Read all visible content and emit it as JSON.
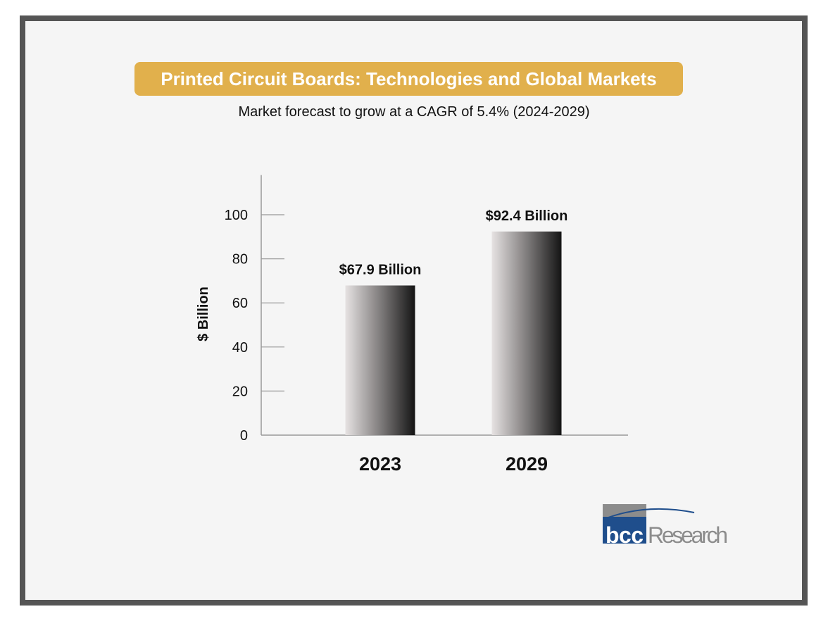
{
  "title": "Printed Circuit Boards: Technologies and Global Markets",
  "subtitle": "Market forecast to grow at a CAGR of 5.4% (2024-2029)",
  "colors": {
    "title_bg": "#e1b04c",
    "frame": "#555555",
    "background": "#f5f5f5",
    "logo_blue": "#1f4e8c",
    "logo_gray": "#8c8c8c"
  },
  "logo": {
    "text_bcc": "bcc",
    "text_research": "Research"
  },
  "chart_data": {
    "type": "bar",
    "categories": [
      "2023",
      "2029"
    ],
    "values": [
      67.9,
      92.4
    ],
    "data_labels": [
      "$67.9 Billion",
      "$92.4 Billion"
    ],
    "ylabel": "$ Billion",
    "xlabel": "",
    "ylim": [
      0,
      118
    ],
    "yticks": [
      0,
      20,
      40,
      60,
      80,
      100
    ],
    "grid": false,
    "bar_fill": "horizontal gradient light gray to black"
  }
}
